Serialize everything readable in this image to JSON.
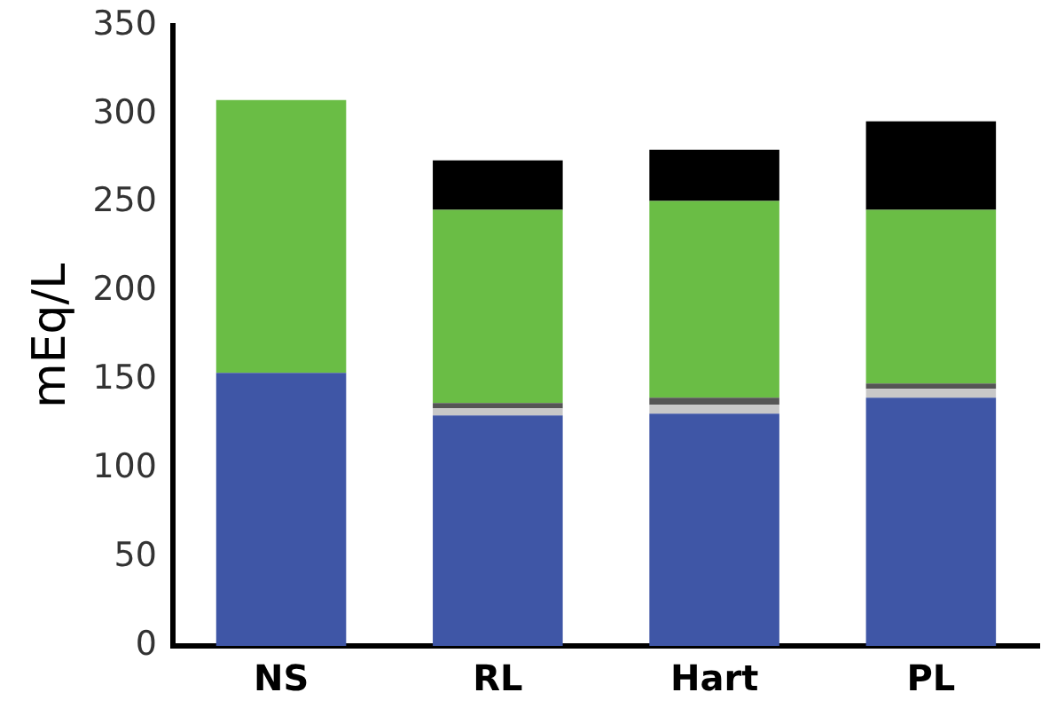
{
  "chart_data": {
    "type": "bar",
    "stacked": true,
    "ylabel": "mEq/L",
    "categories": [
      "NS",
      "RL",
      "Hart",
      "PL"
    ],
    "series": [
      {
        "color": "#3f56a6",
        "values": [
          154,
          130,
          131,
          140
        ]
      },
      {
        "color": "#c8c8c8",
        "values": [
          null,
          4,
          5,
          5
        ]
      },
      {
        "color": "#555555",
        "values": [
          null,
          3,
          4,
          3
        ]
      },
      {
        "color": "#6abd45",
        "values": [
          154,
          109,
          111,
          98
        ]
      },
      {
        "color": "#000000",
        "values": [
          null,
          28,
          29,
          50
        ]
      }
    ],
    "ylim": [
      0,
      350
    ],
    "yticks": [
      0,
      50,
      100,
      150,
      200,
      250,
      300,
      350
    ],
    "grid": false,
    "legend": false
  }
}
